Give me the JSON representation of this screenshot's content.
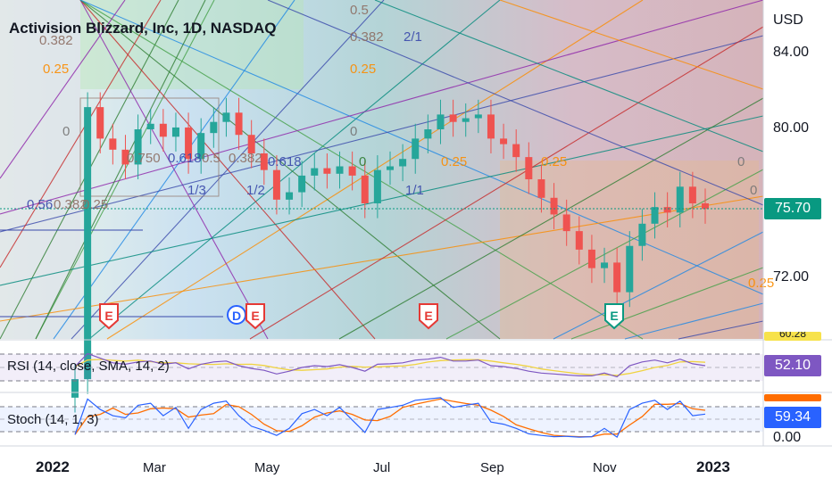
{
  "header": {
    "title": "Activision Blizzard, Inc, 1D, NASDAQ"
  },
  "price_axis": {
    "currency": "USD",
    "ticks": [
      "84.00",
      "80.00",
      "72.00"
    ],
    "last_price": "75.70",
    "last_price_color": "#089981"
  },
  "rsi": {
    "label": "RSI (14, close, SMA, 14, 2)",
    "value": "52.10",
    "color": "#7e57c2",
    "cut_value": "60.28"
  },
  "stoch": {
    "label": "Stoch (14, 1, 3)",
    "value": "59.34",
    "color": "#2962ff",
    "bottom": "0.00"
  },
  "time_axis": {
    "labels": [
      {
        "text": "2022",
        "bold": true
      },
      {
        "text": "Mar",
        "bold": false
      },
      {
        "text": "May",
        "bold": false
      },
      {
        "text": "Jul",
        "bold": false
      },
      {
        "text": "Sep",
        "bold": false
      },
      {
        "text": "Nov",
        "bold": false
      },
      {
        "text": "2023",
        "bold": true
      }
    ]
  },
  "fib_labels": [
    "0.5",
    "0.382",
    "2/1",
    "0.25",
    "0.382",
    "0.25",
    "0",
    "0",
    "0.750",
    "0.618",
    "0.5",
    "0.382",
    "0.618",
    "0.25",
    "0",
    "1/3",
    "1/2",
    "1/1",
    "0.25",
    "0.56",
    "0.382",
    "0.25",
    "0",
    "0",
    "0.25"
  ],
  "events": [
    {
      "letter": "E",
      "color": "#e53935"
    },
    {
      "letter": "D",
      "color": "#2962ff"
    },
    {
      "letter": "E",
      "color": "#e53935"
    },
    {
      "letter": "E",
      "color": "#e53935"
    },
    {
      "letter": "E",
      "color": "#089981"
    }
  ],
  "chart_data": {
    "type": "line",
    "symbol": "Activision Blizzard, Inc",
    "interval": "1D",
    "exchange": "NASDAQ",
    "x": [
      "2022-01-03",
      "2022-01-10",
      "2022-01-17",
      "2022-01-24",
      "2022-01-31",
      "2022-02-07",
      "2022-02-14",
      "2022-02-21",
      "2022-02-28",
      "2022-03-07",
      "2022-03-14",
      "2022-03-21",
      "2022-03-28",
      "2022-04-04",
      "2022-04-11",
      "2022-04-18",
      "2022-04-25",
      "2022-05-02",
      "2022-05-09",
      "2022-05-16",
      "2022-05-23",
      "2022-05-30",
      "2022-06-06",
      "2022-06-13",
      "2022-06-20",
      "2022-06-27",
      "2022-07-04",
      "2022-07-11",
      "2022-07-18",
      "2022-07-25",
      "2022-08-01",
      "2022-08-08",
      "2022-08-15",
      "2022-08-22",
      "2022-08-29",
      "2022-09-05",
      "2022-09-12",
      "2022-09-19",
      "2022-09-26",
      "2022-10-03",
      "2022-10-10",
      "2022-10-17",
      "2022-10-24",
      "2022-10-31",
      "2022-11-07",
      "2022-11-14",
      "2022-11-21",
      "2022-11-28",
      "2022-12-05",
      "2022-12-12",
      "2022-12-19"
    ],
    "close": [
      66.5,
      81.2,
      79.5,
      78.9,
      78.1,
      80.0,
      80.3,
      79.6,
      80.1,
      78.4,
      79.8,
      80.4,
      80.9,
      79.7,
      78.7,
      77.8,
      76.2,
      76.6,
      77.5,
      77.9,
      77.6,
      78.0,
      77.5,
      76.0,
      77.8,
      78.0,
      78.4,
      79.5,
      80.0,
      80.8,
      80.4,
      80.6,
      80.8,
      79.5,
      79.2,
      78.5,
      77.3,
      76.3,
      75.4,
      74.5,
      73.5,
      72.5,
      72.8,
      71.2,
      73.7,
      74.9,
      75.8,
      75.5,
      76.9,
      76.0,
      75.7
    ],
    "price_ticks": [
      84.0,
      80.0,
      72.0
    ],
    "last_price": 75.7,
    "rsi": {
      "label": "RSI (14, close, SMA, 14, 2)",
      "last": 52.1,
      "upper_band": 70,
      "lower_band": 30,
      "values": [
        50,
        78,
        68,
        58,
        55,
        60,
        62,
        55,
        58,
        45,
        55,
        60,
        62,
        52,
        46,
        42,
        34,
        40,
        48,
        52,
        50,
        54,
        48,
        40,
        55,
        56,
        58,
        64,
        66,
        70,
        62,
        62,
        64,
        52,
        50,
        46,
        40,
        36,
        34,
        32,
        30,
        30,
        36,
        28,
        52,
        60,
        64,
        58,
        66,
        56,
        52
      ]
    },
    "stoch": {
      "label": "Stoch (14, 1, 3)",
      "last": 59.34,
      "upper_band": 80,
      "lower_band": 20,
      "values": [
        10,
        95,
        70,
        55,
        50,
        80,
        85,
        55,
        75,
        25,
        70,
        85,
        90,
        55,
        30,
        20,
        8,
        25,
        60,
        70,
        55,
        75,
        45,
        15,
        70,
        75,
        80,
        92,
        95,
        98,
        75,
        80,
        85,
        40,
        35,
        25,
        12,
        8,
        5,
        6,
        4,
        5,
        25,
        4,
        70,
        85,
        92,
        70,
        90,
        55,
        59
      ]
    },
    "time_labels": [
      "2022",
      "Mar",
      "May",
      "Jul",
      "Sep",
      "Nov",
      "2023"
    ],
    "grid": false,
    "legend": "top-left"
  }
}
